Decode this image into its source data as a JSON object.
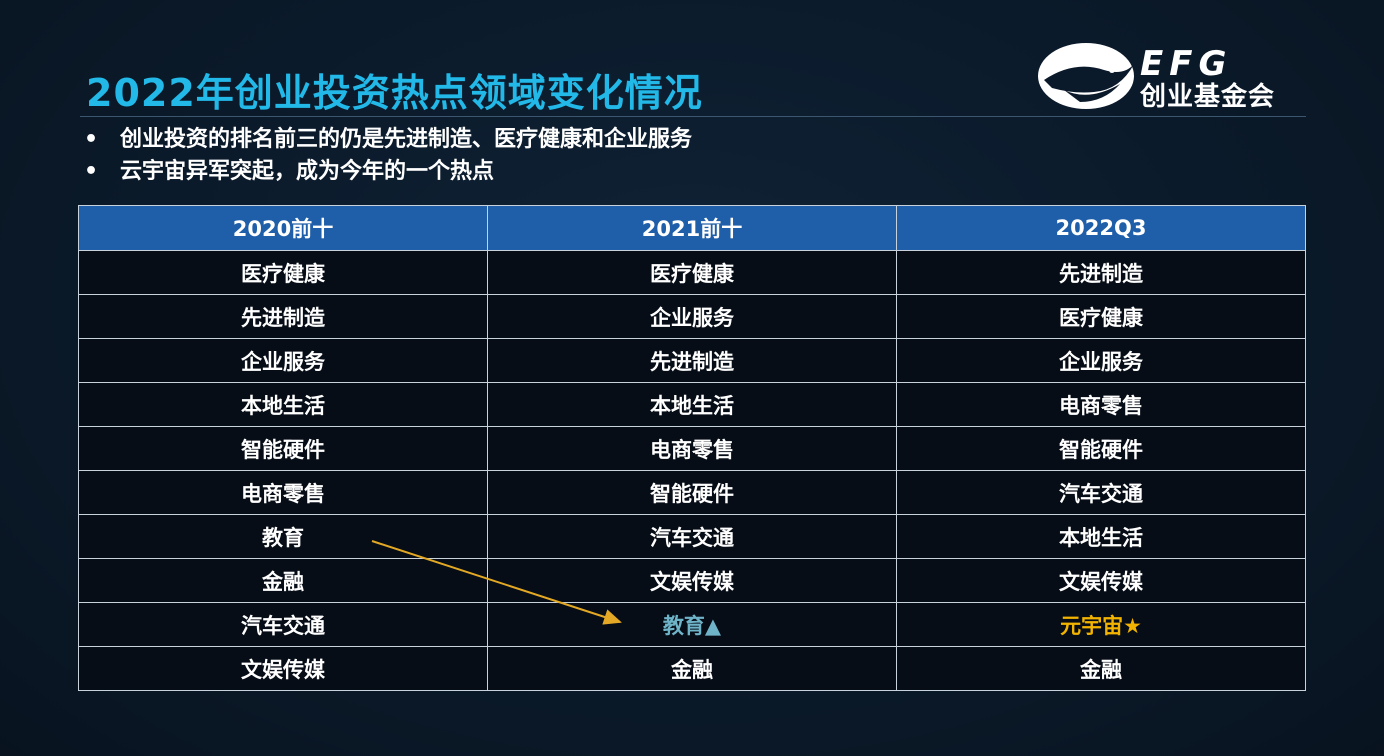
{
  "title": "2022年创业投资热点领域变化情况",
  "logo": {
    "brand": "EFG",
    "name": "创业基金会",
    "icon": "eagle-logo-icon"
  },
  "bullets": [
    "创业投资的排名前三的仍是先进制造、医疗健康和企业服务",
    "云宇宙异军突起，成为今年的一个热点"
  ],
  "bullet_symbol": "•",
  "table": {
    "headers": [
      "2020前十",
      "2021前十",
      "2022Q3"
    ],
    "rows": [
      [
        "医疗健康",
        "医疗健康",
        "先进制造"
      ],
      [
        "先进制造",
        "企业服务",
        "医疗健康"
      ],
      [
        "企业服务",
        "先进制造",
        "企业服务"
      ],
      [
        "本地生活",
        "本地生活",
        "电商零售"
      ],
      [
        "智能硬件",
        "电商零售",
        "智能硬件"
      ],
      [
        "电商零售",
        "智能硬件",
        "汽车交通"
      ],
      [
        "教育",
        "汽车交通",
        "本地生活"
      ],
      [
        "金融",
        "文娱传媒",
        "文娱传媒"
      ],
      [
        "汽车交通",
        "教育▲",
        "元宇宙★"
      ],
      [
        "文娱传媒",
        "金融",
        "金融"
      ]
    ],
    "highlights": [
      {
        "row": 8,
        "col": 1,
        "color": "#6fb3c8"
      },
      {
        "row": 8,
        "col": 2,
        "color": "#f2b400"
      }
    ]
  },
  "colors": {
    "title": "#22b8e8",
    "header_bg": "#1f5ea8",
    "cell_bg": "#060d17",
    "arrow": "#e3a825"
  }
}
